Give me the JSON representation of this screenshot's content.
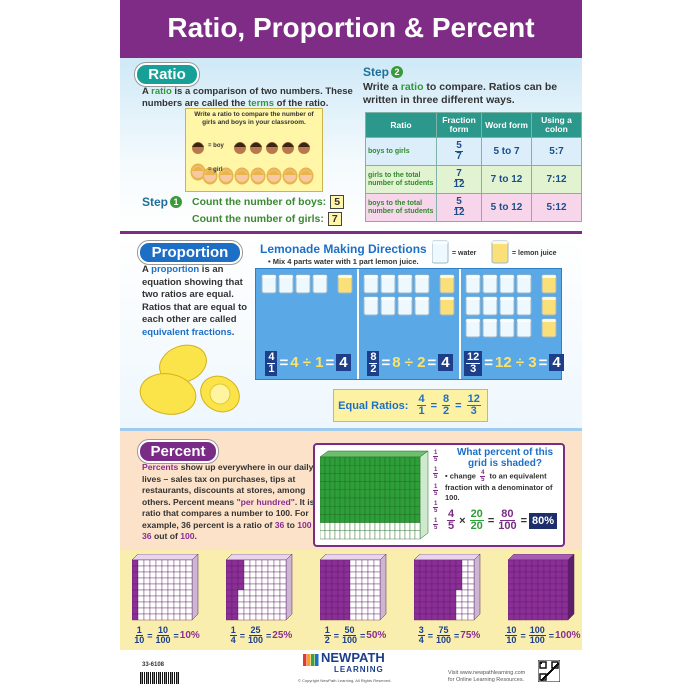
{
  "title": "Ratio, Proportion & Percent",
  "equals": "=",
  "ratio": {
    "heading": "Ratio",
    "intro": [
      "A ",
      "ratio",
      " is a comparison of two numbers. These numbers are called the ",
      "terms",
      " of the ratio."
    ],
    "illustration": {
      "caption": "Write a ratio to compare the number of girls and boys in your classroom.",
      "boy": "= boy",
      "girl": "= girl"
    },
    "step1": {
      "label": "Step",
      "number": "1",
      "lines": [
        {
          "text": "Count the number of boys:",
          "value": "5"
        },
        {
          "text": "Count the number of girls:",
          "value": "7"
        }
      ]
    },
    "step2": {
      "label": "Step",
      "number": "2",
      "text": [
        "Write a ",
        "ratio",
        " to compare. Ratios can be written in three different ways."
      ]
    },
    "table": {
      "headers": [
        "Ratio",
        "Fraction form",
        "Word form",
        "Using a colon"
      ],
      "rows": [
        {
          "ratio": "boys to girls",
          "fraction": {
            "num": "5",
            "den": "7"
          },
          "word": "5 to 7",
          "colon": "5:7"
        },
        {
          "ratio": "girls to the total number of students",
          "fraction": {
            "num": "7",
            "den": "12"
          },
          "word": "7 to 12",
          "colon": "7:12"
        },
        {
          "ratio": "boys to the total number of students",
          "fraction": {
            "num": "5",
            "den": "12"
          },
          "word": "5 to 12",
          "colon": "5:12"
        }
      ]
    }
  },
  "proportion": {
    "heading": "Proportion",
    "text": [
      "A ",
      "proportion",
      " is an equation showing that two ratios are equal. Ratios that are equal to each other are called ",
      "equivalent fractions",
      "."
    ],
    "lemonade": {
      "title": "Lemonade Making Directions",
      "instruction": "• Mix 4 parts water with 1 part lemon juice.",
      "water": "= water",
      "lemon": "= lemon juice",
      "equations": [
        {
          "fraction": {
            "num": "4",
            "den": "1"
          },
          "division": "4 ÷ 1",
          "result": "4"
        },
        {
          "fraction": {
            "num": "8",
            "den": "2"
          },
          "division": "8 ÷ 2",
          "result": "4"
        },
        {
          "fraction": {
            "num": "12",
            "den": "3"
          },
          "division": "12 ÷ 3",
          "result": "4"
        }
      ]
    },
    "equal_ratios": {
      "label": "Equal Ratios:",
      "fractions": [
        {
          "num": "4",
          "den": "1"
        },
        {
          "num": "8",
          "den": "2"
        },
        {
          "num": "12",
          "den": "3"
        }
      ]
    }
  },
  "percent": {
    "heading": "Percent",
    "text": [
      "Percents",
      " show up everywhere in our daily lives – sales tax on purchases, tips at restaurants, discounts at stores, among others. Percent means ",
      "\"per hundred\"",
      ". It is a ratio that compares a number to 100. For example, 36 percent is a ratio of ",
      "36",
      " to ",
      "100",
      " or ",
      "36",
      " out of ",
      "100",
      "."
    ],
    "question": "What percent of this grid is shaded?",
    "hint": {
      "before": "• change ",
      "fraction": {
        "num": "4",
        "den": "5"
      },
      "after": " to an equivalent fraction with a denominator of 100."
    },
    "fifth": {
      "num": "1",
      "den": "5"
    },
    "equation": {
      "terms": [
        {
          "num": "4",
          "den": "5"
        },
        {
          "num": "20",
          "den": "20"
        },
        {
          "num": "80",
          "den": "100"
        }
      ],
      "times": "×",
      "result": "80%"
    }
  },
  "examples": [
    {
      "fraction": {
        "num": "1",
        "den": "10"
      },
      "hundredths": {
        "num": "10",
        "den": "100"
      },
      "percent": "10%"
    },
    {
      "fraction": {
        "num": "1",
        "den": "4"
      },
      "hundredths": {
        "num": "25",
        "den": "100"
      },
      "percent": "25%"
    },
    {
      "fraction": {
        "num": "1",
        "den": "2"
      },
      "hundredths": {
        "num": "50",
        "den": "100"
      },
      "percent": "50%"
    },
    {
      "fraction": {
        "num": "3",
        "den": "4"
      },
      "hundredths": {
        "num": "75",
        "den": "100"
      },
      "percent": "75%"
    },
    {
      "fraction": {
        "num": "10",
        "den": "10"
      },
      "hundredths": {
        "num": "100",
        "den": "100"
      },
      "percent": "100%"
    }
  ],
  "footer": {
    "code": "33-6108",
    "logo": [
      "NEW",
      "PATH",
      "LEARNING"
    ],
    "copyright": "© Copyright NewPath Learning. All Rights Reserved.",
    "visit": [
      "Visit www.newpathlearning.com",
      "for Online Learning Resources."
    ]
  }
}
